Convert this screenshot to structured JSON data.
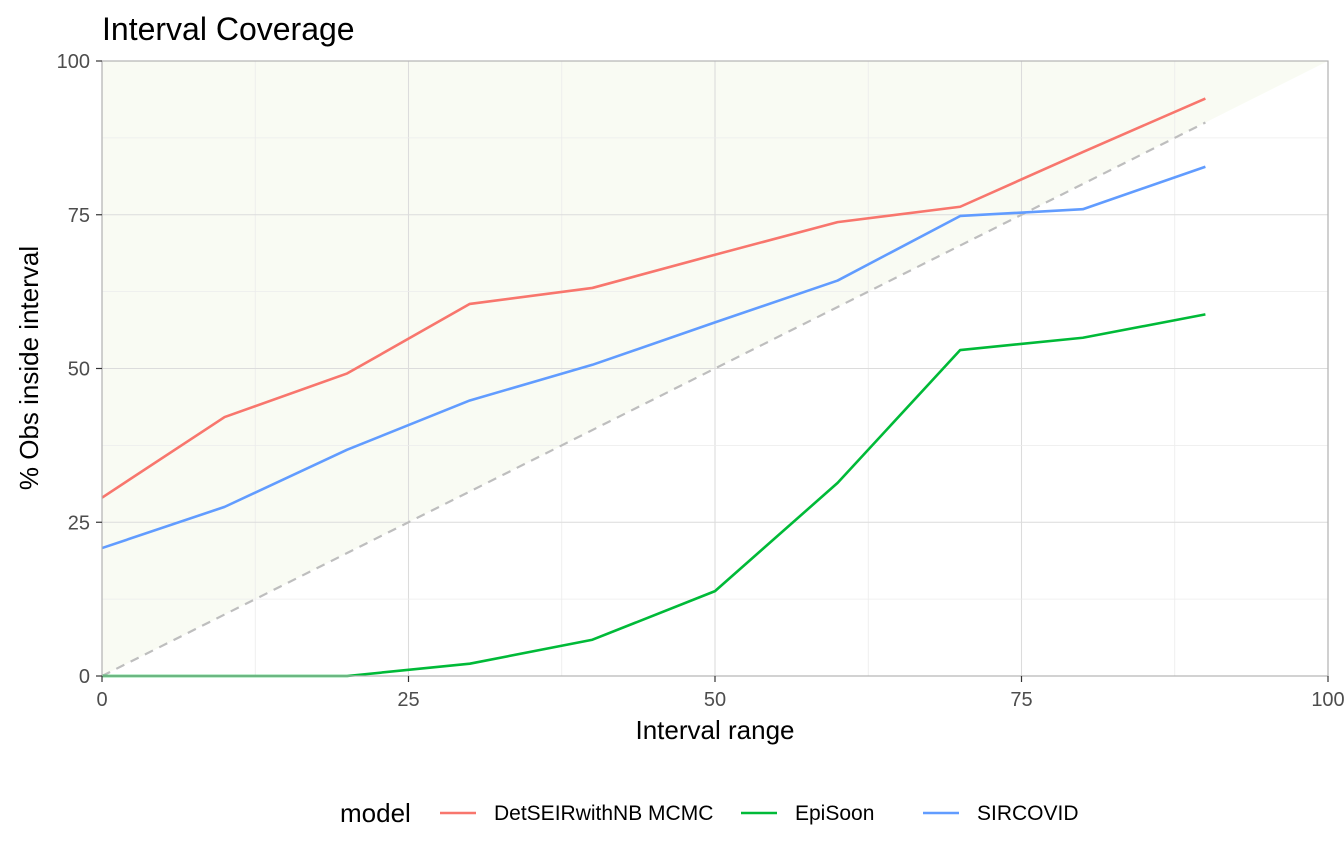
{
  "chart_data": {
    "type": "line",
    "title": "Interval Coverage",
    "xlabel": "Interval range",
    "ylabel": "% Obs inside interval",
    "xlim": [
      0,
      100
    ],
    "ylim": [
      0,
      100
    ],
    "x_ticks": [
      0,
      25,
      50,
      75,
      100
    ],
    "y_ticks": [
      0,
      25,
      50,
      75,
      100
    ],
    "x_tick_labels": [
      "0",
      "25",
      "50",
      "75",
      "100"
    ],
    "y_tick_labels": [
      "0",
      "25",
      "50",
      "75",
      "100"
    ],
    "grid": true,
    "legend": {
      "title": "model",
      "position": "bottom"
    },
    "x": [
      0,
      10,
      20,
      30,
      40,
      50,
      60,
      70,
      80,
      90
    ],
    "reference_line": {
      "x": [
        0,
        100
      ],
      "y": [
        0,
        100
      ],
      "color": "#bebebe",
      "style": "dashed"
    },
    "over_coverage_region": {
      "color": "#f9fbf3"
    },
    "series": [
      {
        "name": "DetSEIRwithNB MCMC",
        "color": "#f8766d",
        "values": [
          29,
          42.1,
          49.2,
          60.5,
          63.1,
          68.5,
          73.8,
          76.3,
          85.2,
          93.9
        ]
      },
      {
        "name": "EpiSoon",
        "color": "#00ba38",
        "values": [
          0,
          0,
          0,
          2,
          5.9,
          13.8,
          31.4,
          53,
          55,
          58.8
        ]
      },
      {
        "name": "SIRCOVID",
        "color": "#619cff",
        "values": [
          20.8,
          27.5,
          36.8,
          44.8,
          50.6,
          57.5,
          64.3,
          74.8,
          75.9,
          82.8
        ]
      }
    ]
  }
}
